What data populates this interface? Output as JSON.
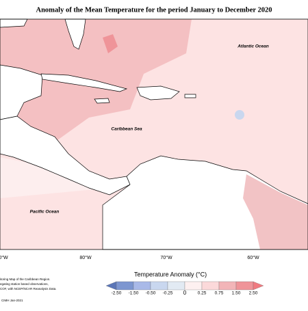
{
  "title": "Anomaly of the Mean Temperature for the period January to December 2020",
  "places": {
    "atlantic": "Atlantic Ocean",
    "caribbean": "Caribbean Sea",
    "pacific": "Pacific Ocean"
  },
  "longitude_labels": [
    "0°W",
    "80°W",
    "70°W",
    "60°W"
  ],
  "legend": {
    "title": "Temperature Anomaly (°C)",
    "ticks": [
      {
        "value": -2.5,
        "label": "-2.50"
      },
      {
        "value": -1.5,
        "label": "-1.50"
      },
      {
        "value": -0.5,
        "label": "-0.50"
      },
      {
        "value": -0.25,
        "label": "-0.25"
      },
      0,
      {
        "value": 0.25,
        "label": "0.25"
      },
      {
        "value": 0.75,
        "label": "0.75"
      },
      {
        "value": 1.5,
        "label": "1.50"
      },
      {
        "value": 2.5,
        "label": "2.50"
      }
    ],
    "colors": [
      "#5b76b8",
      "#7d96d0",
      "#a9b9e8",
      "#c9d7ef",
      "#e2eaf3",
      "#fdf0f0",
      "#fbd9da",
      "#f2b5b8",
      "#ef9499",
      "#f07a80"
    ]
  },
  "notes": [
    "itoring Map of the Caribbean Region.",
    "egating station based observations,",
    "COF, with NCEP/NCAR Reanalysis Data."
  ],
  "credit": "CIMH Jan-2021"
}
